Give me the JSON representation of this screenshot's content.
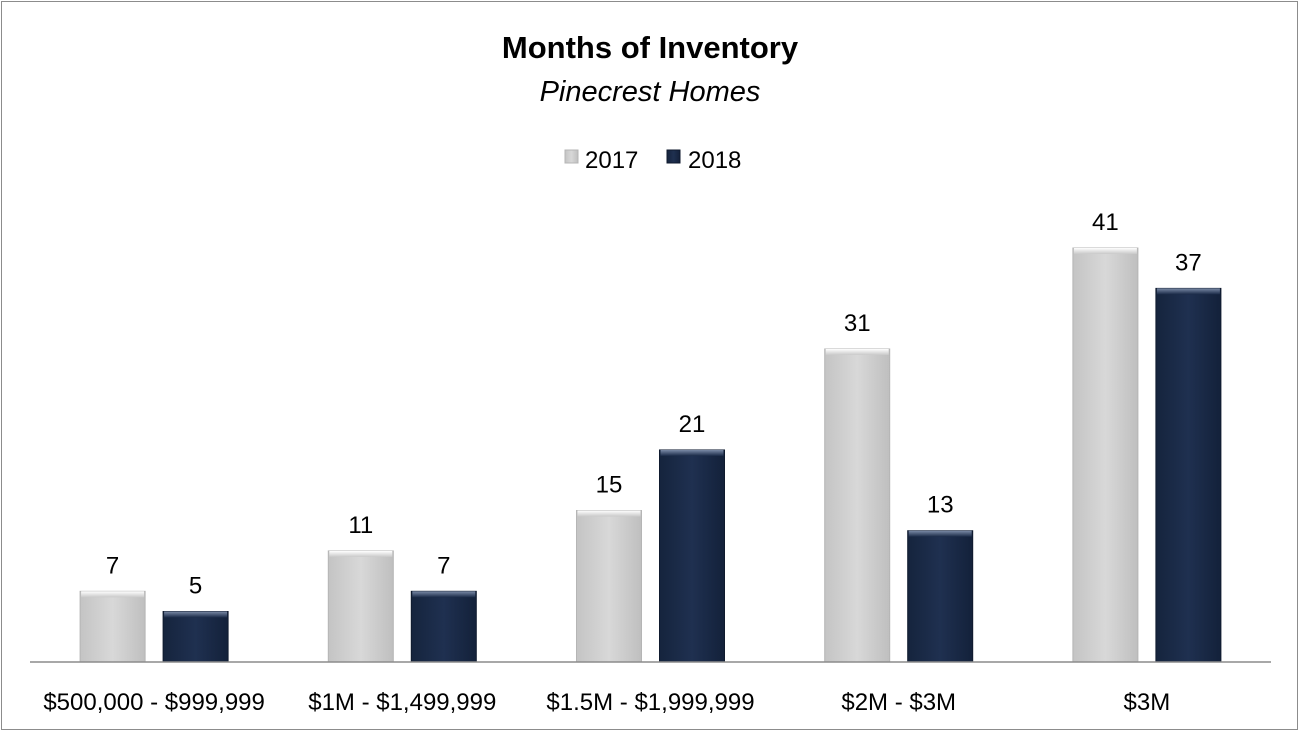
{
  "chart_data": {
    "type": "bar",
    "title": "Months of Inventory",
    "subtitle": "Pinecrest Homes",
    "categories": [
      "$500,000 - $999,999",
      "$1M - $1,499,999",
      "$1.5M - $1,999,999",
      "$2M - $3M",
      "$3M"
    ],
    "series": [
      {
        "name": "2017",
        "values": [
          7,
          11,
          15,
          31,
          41
        ],
        "color": "#d3d3d3",
        "labels": [
          "7",
          "11",
          "15",
          "31",
          "41"
        ]
      },
      {
        "name": "2018",
        "values": [
          5,
          7,
          21,
          13,
          37
        ],
        "color": "#1a2a47",
        "labels": [
          "5",
          "7",
          "21",
          "13",
          "37"
        ]
      }
    ],
    "ylim": [
      0,
      41
    ],
    "grid": false,
    "legend_position": "top-center",
    "data_labels": true
  }
}
